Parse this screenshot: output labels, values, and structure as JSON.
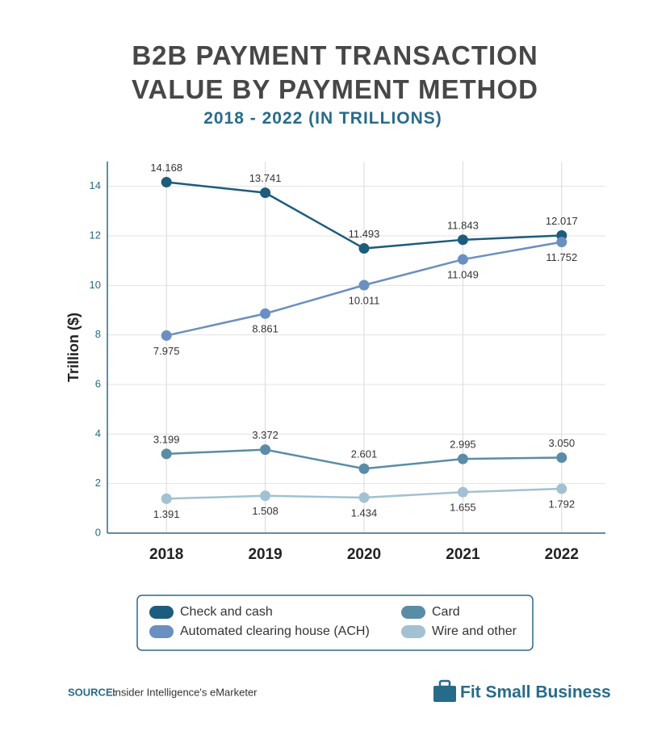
{
  "chart_data": {
    "type": "line",
    "title": "B2B PAYMENT TRANSACTION\nVALUE BY PAYMENT METHOD",
    "subtitle": "2018 - 2022 (IN TRILLIONS)",
    "y_label": "Trillion ($)",
    "categories": [
      "2018",
      "2019",
      "2020",
      "2021",
      "2022"
    ],
    "series": [
      {
        "name": "Check and cash",
        "color": "#1d5c7c",
        "values": [
          14.168,
          13.741,
          11.493,
          11.843,
          12.017
        ]
      },
      {
        "name": "Automated clearing house (ACH)",
        "color": "#6b8fc0",
        "values": [
          7.975,
          8.861,
          10.011,
          11.049,
          11.752
        ]
      },
      {
        "name": "Card",
        "color": "#5a8ca6",
        "values": [
          3.199,
          3.372,
          2.601,
          2.995,
          3.05
        ],
        "value_labels": [
          "3.199",
          "3.372",
          "2.601",
          "2.995",
          "3.050"
        ]
      },
      {
        "name": "Wire and other",
        "color": "#a3c1d0",
        "values": [
          1.391,
          1.508,
          1.434,
          1.655,
          1.792
        ]
      }
    ],
    "ylim": [
      0,
      15
    ],
    "yticks": [
      0,
      2,
      4,
      6,
      8,
      10,
      12,
      14
    ],
    "grid": true,
    "source_label": "SOURCE:",
    "source": "Insider Intelligence's eMarketer",
    "brand": "Fit Small Business"
  }
}
